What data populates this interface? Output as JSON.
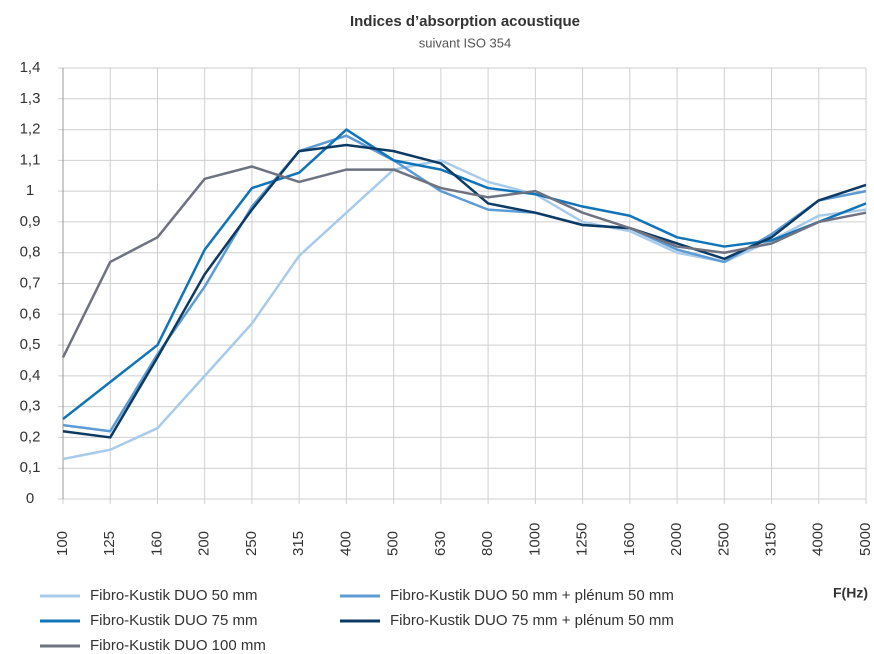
{
  "chart_data": {
    "type": "line",
    "title": "Indices d’absorption acoustique",
    "subtitle": "suivant ISO 354",
    "x_label": "F(Hz)",
    "categories": [
      "100",
      "125",
      "160",
      "200",
      "250",
      "315",
      "400",
      "500",
      "630",
      "800",
      "1000",
      "1250",
      "1600",
      "2000",
      "2500",
      "3150",
      "4000",
      "5000"
    ],
    "ylim": [
      0,
      1.4
    ],
    "yticks": [
      0,
      {
        "value": 0.1,
        "label": "0,1"
      },
      {
        "value": 0.2,
        "label": "0,2"
      },
      {
        "value": 0.3,
        "label": "0,3"
      },
      {
        "value": 0.4,
        "label": "0,4"
      },
      {
        "value": 0.5,
        "label": "0,5"
      },
      {
        "value": 0.6,
        "label": "0,6"
      },
      {
        "value": 0.7,
        "label": "0,7"
      },
      {
        "value": 0.8,
        "label": "0,8"
      },
      {
        "value": 0.9,
        "label": "0,9"
      },
      1,
      {
        "value": 1.1,
        "label": "1,1"
      },
      {
        "value": 1.2,
        "label": "1,2"
      },
      {
        "value": 1.3,
        "label": "1,3"
      },
      {
        "value": 1.4,
        "label": "1,4"
      }
    ],
    "grid": true,
    "series": [
      {
        "name": "Fibro-Kustik DUO 50 mm",
        "color": "#a9cbea",
        "values": [
          0.13,
          0.16,
          0.23,
          0.4,
          0.57,
          0.79,
          0.93,
          1.07,
          1.1,
          1.03,
          0.99,
          0.9,
          0.87,
          0.8,
          0.77,
          0.84,
          0.92,
          0.94
        ]
      },
      {
        "name": "Fibro-Kustik DUO 50 mm + plénum 50 mm",
        "color": "#5c9bd3",
        "values": [
          0.24,
          0.22,
          0.47,
          0.69,
          0.95,
          1.13,
          1.18,
          1.1,
          1.0,
          0.94,
          0.93,
          0.89,
          0.88,
          0.81,
          0.77,
          0.86,
          0.97,
          1.0
        ]
      },
      {
        "name": "Fibro-Kustik DUO 75 mm",
        "color": "#1274b8",
        "values": [
          0.26,
          0.38,
          0.5,
          0.81,
          1.01,
          1.06,
          1.2,
          1.1,
          1.07,
          1.01,
          0.99,
          0.95,
          0.92,
          0.85,
          0.82,
          0.84,
          0.9,
          0.96
        ]
      },
      {
        "name": "Fibro-Kustik DUO 75 mm + plénum 50 mm",
        "color": "#0d3a63",
        "values": [
          0.22,
          0.2,
          0.46,
          0.73,
          0.94,
          1.13,
          1.15,
          1.13,
          1.09,
          0.96,
          0.93,
          0.89,
          0.88,
          0.83,
          0.78,
          0.85,
          0.97,
          1.02
        ]
      },
      {
        "name": "Fibro-Kustik DUO 100 mm",
        "color": "#6e7281",
        "values": [
          0.46,
          0.77,
          0.85,
          1.04,
          1.08,
          1.03,
          1.07,
          1.07,
          1.01,
          0.98,
          1.0,
          0.93,
          0.88,
          0.82,
          0.8,
          0.83,
          0.9,
          0.93
        ]
      }
    ]
  }
}
